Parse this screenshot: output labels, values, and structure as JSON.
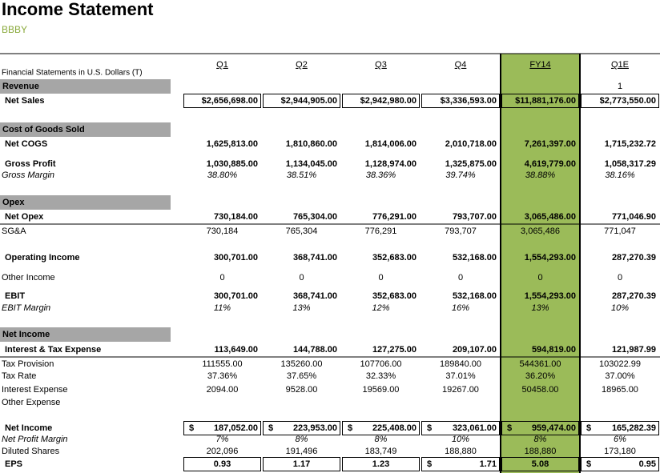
{
  "header": {
    "title": "Income Statement",
    "ticker": "BBBY"
  },
  "table": {
    "caption": "Financial Statements in U.S. Dollars (T)",
    "columns": [
      "Q1",
      "Q2",
      "Q3",
      "Q4",
      "FY14",
      "Q1E"
    ],
    "rows": [
      {
        "label": "Revenue",
        "style": "section",
        "cells": [
          null,
          null,
          null,
          null,
          null,
          "1"
        ]
      },
      {
        "label": "Net Sales",
        "style": "boxed",
        "cells": [
          "$2,656,698.00",
          "$2,944,905.00",
          "$2,942,980.00",
          "$3,336,593.00",
          "$11,881,176.00",
          "$2,773,550.00"
        ]
      },
      {
        "label": "Cost of Goods Sold",
        "style": "section"
      },
      {
        "label": "Net COGS",
        "style": "bold",
        "cells": [
          "1,625,813.00",
          "1,810,860.00",
          "1,814,006.00",
          "2,010,718.00",
          "7,261,397.00",
          "1,715,232.72"
        ]
      },
      {
        "label": "Gross Profit",
        "style": "bold",
        "cells": [
          "1,030,885.00",
          "1,134,045.00",
          "1,128,974.00",
          "1,325,875.00",
          "4,619,779.00",
          "1,058,317.29"
        ]
      },
      {
        "label": "Gross Margin",
        "style": "italic",
        "cells": [
          "38.80%",
          "38.51%",
          "38.36%",
          "39.74%",
          "38.88%",
          "38.16%"
        ]
      },
      {
        "label": "Opex",
        "style": "section"
      },
      {
        "label": "Net Opex",
        "style": "bold-rule",
        "cells": [
          "730,184.00",
          "765,304.00",
          "776,291.00",
          "793,707.00",
          "3,065,486.00",
          "771,046.90"
        ]
      },
      {
        "label": "SG&A",
        "style": "plain",
        "cells": [
          "730,184",
          "765,304",
          "776,291",
          "793,707",
          "3,065,486",
          "771,047"
        ]
      },
      {
        "label": "Operating Income",
        "style": "bold",
        "cells": [
          "300,701.00",
          "368,741.00",
          "352,683.00",
          "532,168.00",
          "1,554,293.00",
          "287,270.39"
        ]
      },
      {
        "label": "Other Income",
        "style": "plain",
        "cells": [
          "0",
          "0",
          "0",
          "0",
          "0",
          "0"
        ]
      },
      {
        "label": "EBIT",
        "style": "bold",
        "cells": [
          "300,701.00",
          "368,741.00",
          "352,683.00",
          "532,168.00",
          "1,554,293.00",
          "287,270.39"
        ]
      },
      {
        "label": "EBIT Margin",
        "style": "italic",
        "cells": [
          "11%",
          "13%",
          "12%",
          "16%",
          "13%",
          "10%"
        ]
      },
      {
        "label": "Net Income",
        "style": "section"
      },
      {
        "label": "Interest & Tax Expense",
        "style": "bold-rule",
        "cells": [
          "113,649.00",
          "144,788.00",
          "127,275.00",
          "209,107.00",
          "594,819.00",
          "121,987.99"
        ]
      },
      {
        "label": "Tax Provision",
        "style": "plain",
        "cells": [
          "111555.00",
          "135260.00",
          "107706.00",
          "189840.00",
          "544361.00",
          "103022.99"
        ]
      },
      {
        "label": "Tax Rate",
        "style": "plain",
        "cells": [
          "37.36%",
          "37.65%",
          "32.33%",
          "37.01%",
          "36.20%",
          "37.00%"
        ]
      },
      {
        "label": "Interest Expense",
        "style": "plain",
        "cells": [
          "2094.00",
          "9528.00",
          "19569.00",
          "19267.00",
          "50458.00",
          "18965.00"
        ]
      },
      {
        "label": "Other Expense",
        "style": "plain"
      },
      {
        "label": "Net Income",
        "style": "boxed",
        "cells": [
          {
            "currency": "$",
            "amount": "187,052.00"
          },
          {
            "currency": "$",
            "amount": "223,953.00"
          },
          {
            "currency": "$",
            "amount": "225,408.00"
          },
          {
            "currency": "$",
            "amount": "323,061.00"
          },
          {
            "currency": "$",
            "amount": "959,474.00"
          },
          {
            "currency": "$",
            "amount": "165,282.39"
          }
        ]
      },
      {
        "label": "Net Profit Margin",
        "style": "italic",
        "cells": [
          "7%",
          "8%",
          "8%",
          "10%",
          "8%",
          "6%"
        ]
      },
      {
        "label": "Diluted Shares",
        "style": "plain",
        "cells": [
          "202,096",
          "191,496",
          "183,749",
          "188,880",
          "188,880",
          "173,180"
        ]
      },
      {
        "label": "EPS",
        "style": "boxed",
        "cells": [
          "0.93",
          "1.17",
          "1.23",
          {
            "currency": "$",
            "amount": "1.71"
          },
          "5.08",
          {
            "currency": "$",
            "amount": "0.95"
          }
        ]
      }
    ]
  }
}
